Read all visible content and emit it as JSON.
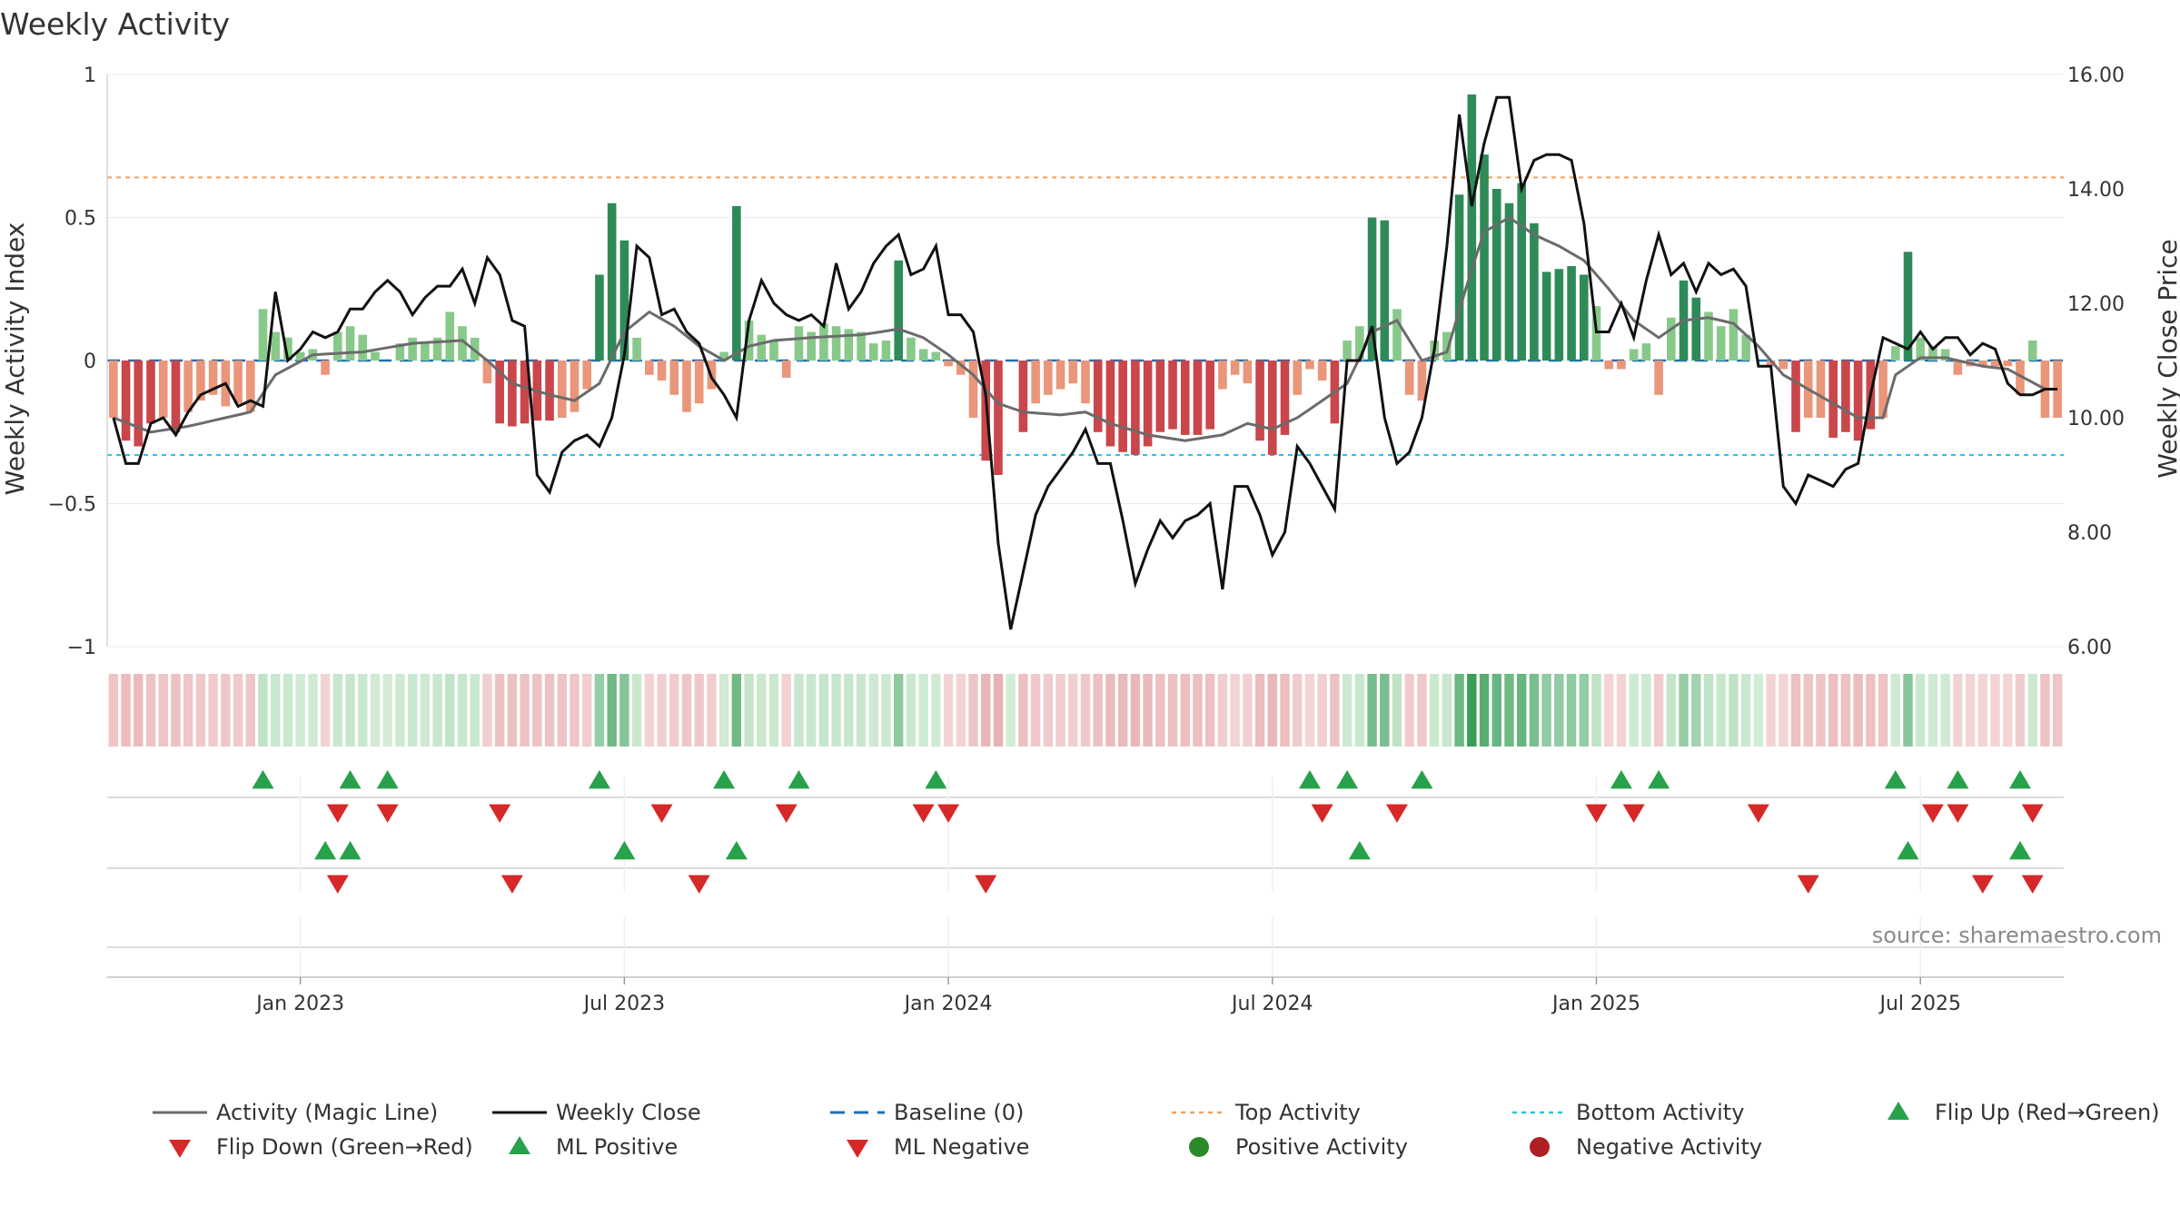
{
  "chart_data": {
    "type": "bar",
    "title": "Weekly Activity",
    "ylabel": "Weekly Activity Index",
    "y2label": "Weekly Close Price",
    "ylim": [
      -1,
      1
    ],
    "y2lim": [
      6.0,
      16.0
    ],
    "yticks": [
      "1",
      "0.5",
      "0",
      "−0.5",
      "−1"
    ],
    "y2ticks": [
      "16.00",
      "14.00",
      "12.00",
      "10.00",
      "8.00",
      "6.00"
    ],
    "xtick_labels": [
      "Jan 2023",
      "Jul 2023",
      "Jan 2024",
      "Jul 2024",
      "Jan 2025",
      "Jul 2025"
    ],
    "xtick_weeks": [
      15,
      41,
      67,
      93,
      119,
      145
    ],
    "week_count": 157,
    "top_activity": 0.64,
    "bottom_activity": -0.33,
    "baseline": 0,
    "source": "source: sharemaestro.com",
    "series": [
      {
        "name": "Activity (Magic Line)",
        "color": "#6b6b6b"
      },
      {
        "name": "Weekly Close",
        "color": "#111111"
      }
    ],
    "activity_keys": [
      [
        0,
        -0.2
      ],
      [
        1,
        -0.28
      ],
      [
        2,
        -0.3
      ],
      [
        3,
        -0.22
      ],
      [
        4,
        -0.2
      ],
      [
        5,
        -0.25
      ],
      [
        6,
        -0.18
      ],
      [
        7,
        -0.14
      ],
      [
        8,
        -0.12
      ],
      [
        9,
        -0.16
      ],
      [
        10,
        -0.15
      ],
      [
        11,
        -0.18
      ],
      [
        12,
        0.18
      ],
      [
        13,
        0.1
      ],
      [
        14,
        0.08
      ],
      [
        15,
        0.03
      ],
      [
        16,
        0.04
      ],
      [
        17,
        -0.05
      ],
      [
        18,
        0.1
      ],
      [
        19,
        0.12
      ],
      [
        20,
        0.09
      ],
      [
        21,
        0.03
      ],
      [
        22,
        0.0
      ],
      [
        23,
        0.06
      ],
      [
        24,
        0.08
      ],
      [
        25,
        0.06
      ],
      [
        26,
        0.08
      ],
      [
        27,
        0.17
      ],
      [
        28,
        0.12
      ],
      [
        29,
        0.08
      ],
      [
        30,
        -0.08
      ],
      [
        31,
        -0.22
      ],
      [
        32,
        -0.23
      ],
      [
        33,
        -0.22
      ],
      [
        34,
        -0.21
      ],
      [
        35,
        -0.21
      ],
      [
        36,
        -0.2
      ],
      [
        37,
        -0.18
      ],
      [
        38,
        -0.1
      ],
      [
        39,
        0.3
      ],
      [
        40,
        0.55
      ],
      [
        41,
        0.42
      ],
      [
        42,
        0.08
      ],
      [
        43,
        -0.05
      ],
      [
        44,
        -0.07
      ],
      [
        45,
        -0.12
      ],
      [
        46,
        -0.18
      ],
      [
        47,
        -0.15
      ],
      [
        48,
        -0.1
      ],
      [
        49,
        0.03
      ],
      [
        50,
        0.54
      ],
      [
        51,
        0.14
      ],
      [
        52,
        0.09
      ],
      [
        53,
        0.07
      ],
      [
        54,
        -0.06
      ],
      [
        55,
        0.12
      ],
      [
        56,
        0.1
      ],
      [
        57,
        0.13
      ],
      [
        58,
        0.12
      ],
      [
        59,
        0.11
      ],
      [
        60,
        0.1
      ],
      [
        61,
        0.06
      ],
      [
        62,
        0.07
      ],
      [
        63,
        0.35
      ],
      [
        64,
        0.08
      ],
      [
        65,
        0.04
      ],
      [
        66,
        0.03
      ],
      [
        67,
        -0.02
      ],
      [
        68,
        -0.05
      ],
      [
        69,
        -0.2
      ],
      [
        70,
        -0.35
      ],
      [
        71,
        -0.4
      ],
      [
        72,
        0.0
      ],
      [
        73,
        -0.25
      ],
      [
        74,
        -0.15
      ],
      [
        75,
        -0.12
      ],
      [
        76,
        -0.1
      ],
      [
        77,
        -0.08
      ],
      [
        78,
        -0.15
      ],
      [
        79,
        -0.25
      ],
      [
        80,
        -0.3
      ],
      [
        81,
        -0.32
      ],
      [
        82,
        -0.33
      ],
      [
        83,
        -0.3
      ],
      [
        84,
        -0.25
      ],
      [
        85,
        -0.24
      ],
      [
        86,
        -0.26
      ],
      [
        87,
        -0.26
      ],
      [
        88,
        -0.24
      ],
      [
        89,
        -0.1
      ],
      [
        90,
        -0.05
      ],
      [
        91,
        -0.08
      ],
      [
        92,
        -0.28
      ],
      [
        93,
        -0.33
      ],
      [
        94,
        -0.26
      ],
      [
        95,
        -0.12
      ],
      [
        96,
        -0.03
      ],
      [
        97,
        -0.07
      ],
      [
        98,
        -0.22
      ],
      [
        99,
        0.07
      ],
      [
        100,
        0.12
      ],
      [
        101,
        0.5
      ],
      [
        102,
        0.49
      ],
      [
        103,
        0.18
      ],
      [
        104,
        -0.12
      ],
      [
        105,
        -0.14
      ],
      [
        106,
        0.07
      ],
      [
        107,
        0.1
      ],
      [
        108,
        0.58
      ],
      [
        109,
        0.93
      ],
      [
        110,
        0.72
      ],
      [
        111,
        0.6
      ],
      [
        112,
        0.55
      ],
      [
        113,
        0.62
      ],
      [
        114,
        0.48
      ],
      [
        115,
        0.31
      ],
      [
        116,
        0.32
      ],
      [
        117,
        0.33
      ],
      [
        118,
        0.3
      ],
      [
        119,
        0.19
      ],
      [
        120,
        -0.03
      ],
      [
        121,
        -0.03
      ],
      [
        122,
        0.04
      ],
      [
        123,
        0.06
      ],
      [
        124,
        -0.12
      ],
      [
        125,
        0.15
      ],
      [
        126,
        0.28
      ],
      [
        127,
        0.22
      ],
      [
        128,
        0.17
      ],
      [
        129,
        0.12
      ],
      [
        130,
        0.18
      ],
      [
        131,
        0.09
      ],
      [
        132,
        0.0
      ],
      [
        133,
        -0.02
      ],
      [
        134,
        -0.03
      ],
      [
        135,
        -0.25
      ],
      [
        136,
        -0.2
      ],
      [
        137,
        -0.2
      ],
      [
        138,
        -0.27
      ],
      [
        139,
        -0.25
      ],
      [
        140,
        -0.28
      ],
      [
        141,
        -0.24
      ],
      [
        142,
        -0.2
      ],
      [
        143,
        0.05
      ],
      [
        144,
        0.38
      ],
      [
        145,
        0.08
      ],
      [
        146,
        0.05
      ],
      [
        147,
        0.04
      ],
      [
        148,
        -0.05
      ],
      [
        149,
        -0.02
      ],
      [
        150,
        -0.02
      ],
      [
        151,
        -0.02
      ],
      [
        152,
        -0.02
      ],
      [
        153,
        -0.12
      ],
      [
        154,
        0.07
      ],
      [
        155,
        -0.2
      ]
    ],
    "close_keys": [
      [
        0,
        10.0
      ],
      [
        1,
        9.2
      ],
      [
        2,
        9.2
      ],
      [
        3,
        9.9
      ],
      [
        4,
        10.0
      ],
      [
        5,
        9.7
      ],
      [
        6,
        10.1
      ],
      [
        7,
        10.4
      ],
      [
        8,
        10.5
      ],
      [
        9,
        10.6
      ],
      [
        10,
        10.2
      ],
      [
        11,
        10.3
      ],
      [
        12,
        10.2
      ],
      [
        13,
        12.2
      ],
      [
        14,
        11.0
      ],
      [
        15,
        11.2
      ],
      [
        16,
        11.5
      ],
      [
        17,
        11.4
      ],
      [
        18,
        11.5
      ],
      [
        19,
        11.9
      ],
      [
        20,
        11.9
      ],
      [
        21,
        12.2
      ],
      [
        22,
        12.4
      ],
      [
        23,
        12.2
      ],
      [
        24,
        11.8
      ],
      [
        25,
        12.1
      ],
      [
        26,
        12.3
      ],
      [
        27,
        12.3
      ],
      [
        28,
        12.6
      ],
      [
        29,
        12.0
      ],
      [
        30,
        12.8
      ],
      [
        31,
        12.5
      ],
      [
        32,
        11.7
      ],
      [
        33,
        11.6
      ],
      [
        34,
        9.0
      ],
      [
        35,
        8.7
      ],
      [
        36,
        9.4
      ],
      [
        37,
        9.6
      ],
      [
        38,
        9.7
      ],
      [
        39,
        9.5
      ],
      [
        40,
        10.0
      ],
      [
        41,
        11.1
      ],
      [
        42,
        13.0
      ],
      [
        43,
        12.8
      ],
      [
        44,
        11.8
      ],
      [
        45,
        11.9
      ],
      [
        46,
        11.5
      ],
      [
        47,
        11.3
      ],
      [
        48,
        10.7
      ],
      [
        49,
        10.4
      ],
      [
        50,
        10.0
      ],
      [
        51,
        11.7
      ],
      [
        52,
        12.4
      ],
      [
        53,
        12.0
      ],
      [
        54,
        11.8
      ],
      [
        55,
        11.7
      ],
      [
        56,
        11.8
      ],
      [
        57,
        11.6
      ],
      [
        58,
        12.7
      ],
      [
        59,
        11.9
      ],
      [
        60,
        12.2
      ],
      [
        61,
        12.7
      ],
      [
        62,
        13.0
      ],
      [
        63,
        13.2
      ],
      [
        64,
        12.5
      ],
      [
        65,
        12.6
      ],
      [
        66,
        13.0
      ],
      [
        67,
        11.8
      ],
      [
        68,
        11.8
      ],
      [
        69,
        11.5
      ],
      [
        70,
        10.4
      ],
      [
        71,
        7.8
      ],
      [
        72,
        6.3
      ],
      [
        73,
        7.3
      ],
      [
        74,
        8.3
      ],
      [
        75,
        8.8
      ],
      [
        76,
        9.1
      ],
      [
        77,
        9.4
      ],
      [
        78,
        9.8
      ],
      [
        79,
        9.2
      ],
      [
        80,
        9.2
      ],
      [
        81,
        8.2
      ],
      [
        82,
        7.1
      ],
      [
        83,
        7.7
      ],
      [
        84,
        8.2
      ],
      [
        85,
        7.9
      ],
      [
        86,
        8.2
      ],
      [
        87,
        8.3
      ],
      [
        88,
        8.5
      ],
      [
        89,
        7.0
      ],
      [
        90,
        8.8
      ],
      [
        91,
        8.8
      ],
      [
        92,
        8.3
      ],
      [
        93,
        7.6
      ],
      [
        94,
        8.0
      ],
      [
        95,
        9.5
      ],
      [
        96,
        9.2
      ],
      [
        97,
        8.8
      ],
      [
        98,
        8.4
      ],
      [
        99,
        11.0
      ],
      [
        100,
        11.0
      ],
      [
        101,
        11.6
      ],
      [
        102,
        10.0
      ],
      [
        103,
        9.2
      ],
      [
        104,
        9.4
      ],
      [
        105,
        10.0
      ],
      [
        106,
        11.2
      ],
      [
        107,
        13.0
      ],
      [
        108,
        15.3
      ],
      [
        109,
        13.7
      ],
      [
        110,
        14.8
      ],
      [
        111,
        15.6
      ],
      [
        112,
        15.6
      ],
      [
        113,
        14.0
      ],
      [
        114,
        14.5
      ],
      [
        115,
        14.6
      ],
      [
        116,
        14.6
      ],
      [
        117,
        14.5
      ],
      [
        118,
        13.4
      ],
      [
        119,
        11.5
      ],
      [
        120,
        11.5
      ],
      [
        121,
        12.0
      ],
      [
        122,
        11.4
      ],
      [
        123,
        12.4
      ],
      [
        124,
        13.2
      ],
      [
        125,
        12.5
      ],
      [
        126,
        12.7
      ],
      [
        127,
        12.2
      ],
      [
        128,
        12.7
      ],
      [
        129,
        12.5
      ],
      [
        130,
        12.6
      ],
      [
        131,
        12.3
      ],
      [
        132,
        10.9
      ],
      [
        133,
        10.9
      ],
      [
        134,
        8.8
      ],
      [
        135,
        8.5
      ],
      [
        136,
        9.0
      ],
      [
        137,
        8.9
      ],
      [
        138,
        8.8
      ],
      [
        139,
        9.1
      ],
      [
        140,
        9.2
      ],
      [
        141,
        10.4
      ],
      [
        142,
        11.4
      ],
      [
        143,
        11.3
      ],
      [
        144,
        11.2
      ],
      [
        145,
        11.5
      ],
      [
        146,
        11.2
      ],
      [
        147,
        11.4
      ],
      [
        148,
        11.4
      ],
      [
        149,
        11.1
      ],
      [
        150,
        11.3
      ],
      [
        151,
        11.2
      ],
      [
        152,
        10.6
      ],
      [
        153,
        10.4
      ],
      [
        154,
        10.4
      ],
      [
        155,
        10.5
      ]
    ],
    "magic_keys": [
      [
        0,
        -0.2
      ],
      [
        3,
        -0.25
      ],
      [
        6,
        -0.23
      ],
      [
        9,
        -0.2
      ],
      [
        11,
        -0.18
      ],
      [
        13,
        -0.05
      ],
      [
        16,
        0.02
      ],
      [
        20,
        0.03
      ],
      [
        24,
        0.06
      ],
      [
        28,
        0.07
      ],
      [
        30,
        0.0
      ],
      [
        32,
        -0.08
      ],
      [
        35,
        -0.12
      ],
      [
        37,
        -0.14
      ],
      [
        39,
        -0.08
      ],
      [
        41,
        0.1
      ],
      [
        43,
        0.17
      ],
      [
        45,
        0.12
      ],
      [
        47,
        0.05
      ],
      [
        49,
        0.0
      ],
      [
        51,
        0.05
      ],
      [
        53,
        0.07
      ],
      [
        56,
        0.08
      ],
      [
        60,
        0.09
      ],
      [
        63,
        0.11
      ],
      [
        65,
        0.08
      ],
      [
        67,
        0.02
      ],
      [
        69,
        -0.05
      ],
      [
        71,
        -0.15
      ],
      [
        73,
        -0.18
      ],
      [
        76,
        -0.19
      ],
      [
        78,
        -0.18
      ],
      [
        80,
        -0.22
      ],
      [
        83,
        -0.26
      ],
      [
        86,
        -0.28
      ],
      [
        89,
        -0.26
      ],
      [
        91,
        -0.22
      ],
      [
        93,
        -0.24
      ],
      [
        95,
        -0.2
      ],
      [
        97,
        -0.14
      ],
      [
        99,
        -0.08
      ],
      [
        101,
        0.1
      ],
      [
        103,
        0.14
      ],
      [
        105,
        0.0
      ],
      [
        107,
        0.03
      ],
      [
        109,
        0.32
      ],
      [
        110,
        0.45
      ],
      [
        112,
        0.5
      ],
      [
        114,
        0.44
      ],
      [
        116,
        0.4
      ],
      [
        118,
        0.35
      ],
      [
        120,
        0.25
      ],
      [
        122,
        0.14
      ],
      [
        124,
        0.08
      ],
      [
        126,
        0.14
      ],
      [
        128,
        0.15
      ],
      [
        130,
        0.13
      ],
      [
        132,
        0.05
      ],
      [
        134,
        -0.05
      ],
      [
        136,
        -0.1
      ],
      [
        138,
        -0.15
      ],
      [
        140,
        -0.2
      ],
      [
        142,
        -0.2
      ],
      [
        143,
        -0.05
      ],
      [
        145,
        0.01
      ],
      [
        147,
        0.01
      ],
      [
        150,
        -0.02
      ],
      [
        152,
        -0.03
      ],
      [
        155,
        -0.1
      ]
    ],
    "flip_up": [
      12,
      19,
      22,
      39,
      49,
      55,
      66,
      96,
      99,
      105,
      121,
      124,
      143,
      148,
      153
    ],
    "flip_down": [
      18,
      22,
      31,
      44,
      54,
      65,
      67,
      97,
      103,
      119,
      122,
      132,
      146,
      148,
      154
    ],
    "ml_positive": [
      17,
      19,
      41,
      50,
      100,
      144,
      153
    ],
    "ml_negative": [
      18,
      32,
      47,
      70,
      136,
      150,
      154
    ],
    "legend": [
      {
        "label": "Activity (Magic Line)",
        "kind": "line",
        "color": "#6b6b6b"
      },
      {
        "label": "Weekly Close",
        "kind": "line",
        "color": "#111111"
      },
      {
        "label": "Baseline (0)",
        "kind": "dash",
        "color": "#1f6fb4"
      },
      {
        "label": "Top Activity",
        "kind": "dot",
        "color": "#f0a060"
      },
      {
        "label": "Bottom Activity",
        "kind": "dot",
        "color": "#29c4e0"
      },
      {
        "label": "Flip Up (Red→Green)",
        "kind": "up",
        "color": "#27a14a"
      },
      {
        "label": "Flip Down (Green→Red)",
        "kind": "down",
        "color": "#d62828"
      },
      {
        "label": "ML Positive",
        "kind": "up",
        "color": "#27a14a"
      },
      {
        "label": "ML Negative",
        "kind": "down",
        "color": "#d62828"
      },
      {
        "label": "Positive Activity",
        "kind": "circle",
        "color": "#2a8a2a"
      },
      {
        "label": "Negative Activity",
        "kind": "circle",
        "color": "#b02020"
      }
    ],
    "colors": {
      "pos_dark": "#2e8b57",
      "pos_light": "#88c98a",
      "neg_dark": "#c9464a",
      "neg_light": "#e9967a",
      "up": "#27a14a",
      "down": "#d62828",
      "top_line": "#f0a060",
      "bottom_line": "#29c4e0",
      "baseline": "#1f6fb4"
    }
  }
}
